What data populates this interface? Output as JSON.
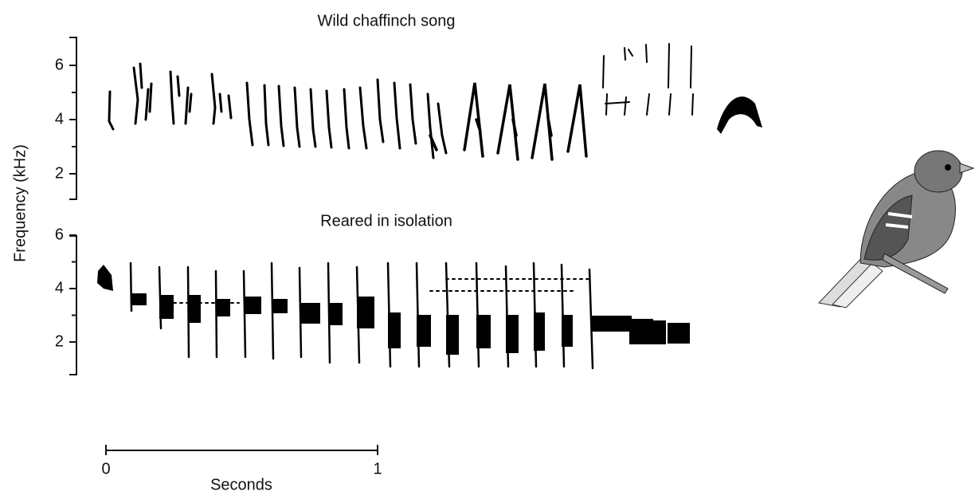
{
  "panels": [
    {
      "title": "Wild chaffinch song",
      "yticks": [
        6,
        4,
        2
      ]
    },
    {
      "title": "Reared in isolation",
      "yticks": [
        6,
        4,
        2
      ]
    }
  ],
  "y_label": "Frequency (kHz)",
  "time_scale": {
    "ticks": [
      0,
      1
    ],
    "label": "Seconds"
  }
}
